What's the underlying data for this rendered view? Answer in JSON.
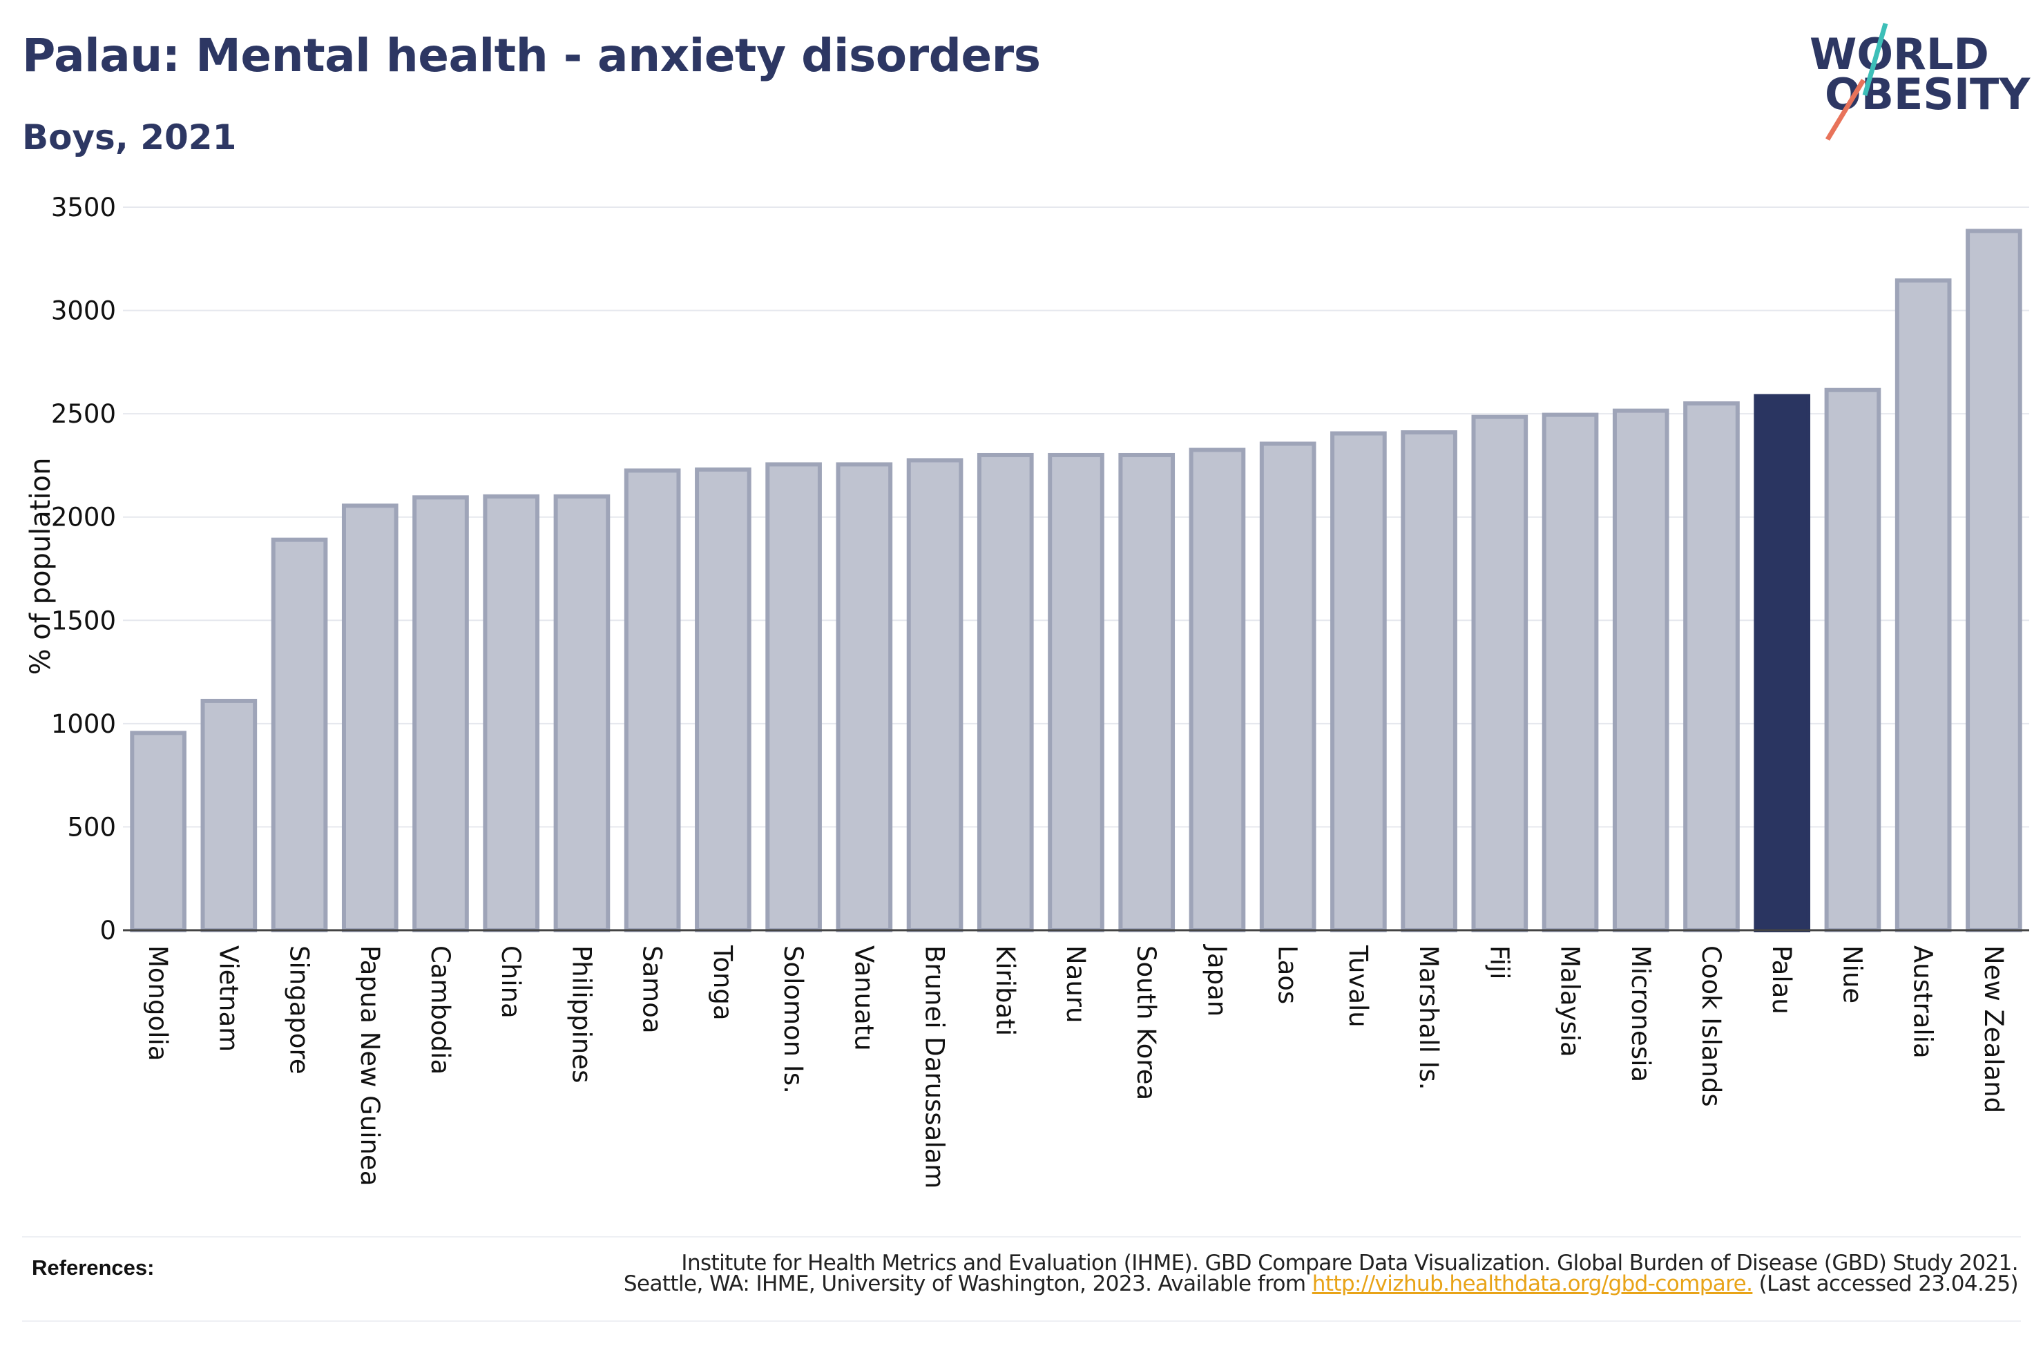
{
  "header": {
    "title": "Palau: Mental health - anxiety disorders",
    "subtitle": "Boys, 2021"
  },
  "logo": {
    "line1": "WORLD",
    "line2": "OBESITY"
  },
  "colors": {
    "bar": "#bfc3d0",
    "bar_edge": "#9ea4b8",
    "highlight": "#2a3561",
    "title": "#2d3763",
    "link": "#e8a317",
    "logo_teal": "#3dbfb8",
    "logo_coral": "#e8735a"
  },
  "chart_data": {
    "type": "bar",
    "title": "Palau: Mental health - anxiety disorders",
    "subtitle": "Boys, 2021",
    "ylabel": "% of population",
    "xlabel": "",
    "ylim": [
      0,
      3500
    ],
    "yticks": [
      0,
      500,
      1000,
      1500,
      2000,
      2500,
      3000,
      3500
    ],
    "grid": true,
    "highlight": "Palau",
    "categories": [
      "Mongolia",
      "Vietnam",
      "Singapore",
      "Papua New Guinea",
      "Cambodia",
      "China",
      "Philippines",
      "Samoa",
      "Tonga",
      "Solomon Is.",
      "Vanuatu",
      "Brunei Darussalam",
      "Kiribati",
      "Nauru",
      "South Korea",
      "Japan",
      "Laos",
      "Tuvalu",
      "Marshall Is.",
      "Fiji",
      "Malaysia",
      "Micronesia",
      "Cook Islands",
      "Palau",
      "Niue",
      "Australia",
      "New Zealand"
    ],
    "values": [
      955,
      1110,
      1890,
      2055,
      2095,
      2100,
      2100,
      2225,
      2230,
      2255,
      2255,
      2275,
      2300,
      2300,
      2300,
      2325,
      2355,
      2405,
      2410,
      2485,
      2495,
      2515,
      2550,
      2585,
      2615,
      3145,
      3385
    ]
  },
  "references": {
    "label": "References:",
    "line1": "Institute for Health Metrics and Evaluation (IHME). GBD Compare Data Visualization. Global Burden of Disease (GBD) Study 2021.",
    "line2_prefix": "Seattle, WA: IHME, University of Washington, 2023. Available from ",
    "link": "http://vizhub.healthdata.org/gbd-compare.",
    "line2_suffix": " (Last accessed 23.04.25)"
  }
}
